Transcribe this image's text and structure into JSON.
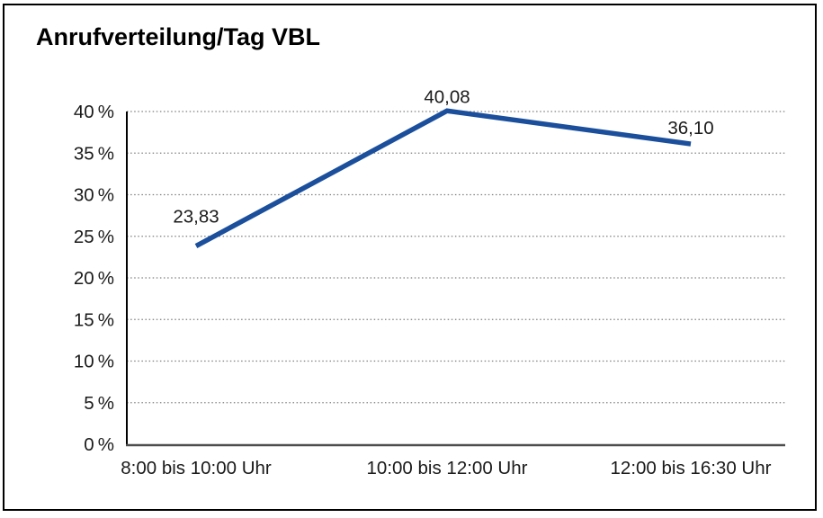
{
  "chart_data": {
    "type": "line",
    "title": "Anrufverteilung/Tag VBL",
    "categories": [
      "8:00 bis 10:00 Uhr",
      "10:00 bis 12:00 Uhr",
      "12:00 bis 16:30 Uhr"
    ],
    "series": [
      {
        "values": [
          23.83,
          40.08,
          36.1
        ],
        "data_labels": [
          "23,83",
          "40,08",
          "36,10"
        ]
      }
    ],
    "xlabel": "",
    "ylabel": "",
    "ylim": [
      0,
      40
    ],
    "ytick_step": 5,
    "ytick_values": [
      0,
      5,
      10,
      15,
      20,
      25,
      30,
      35,
      40
    ],
    "ytick_labels": [
      "0 %",
      "5 %",
      "10 %",
      "15 %",
      "20 %",
      "25 %",
      "30 %",
      "35 %",
      "40 %"
    ],
    "grid": "horizontal-dotted",
    "legend_position": "none",
    "colors": {
      "line": "#1B4F9C",
      "grid": "#7F7F7F",
      "axis": "#000000",
      "baseline": "#4D4D4D",
      "text": "#1A1A1A",
      "border": "#000000",
      "background": "#FFFFFF"
    }
  }
}
